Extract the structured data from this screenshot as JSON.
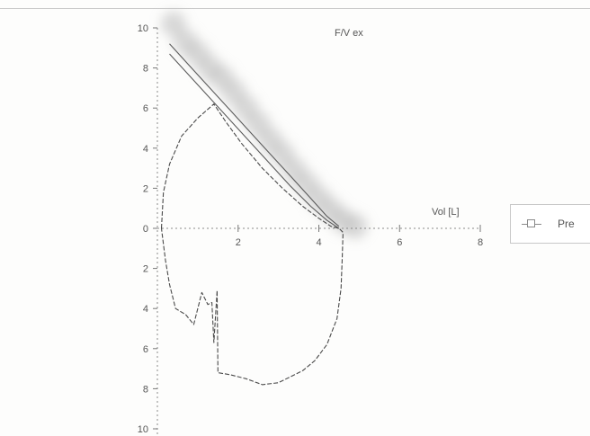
{
  "chart_data": {
    "type": "line",
    "title": "F/V ex",
    "xlabel": "Vol [L]",
    "ylabel": "",
    "xlim": [
      0,
      8
    ],
    "ylim": [
      -10,
      10
    ],
    "x_ticks": [
      {
        "value": 2,
        "label": "2"
      },
      {
        "value": 4,
        "label": "4"
      },
      {
        "value": 6,
        "label": "6"
      },
      {
        "value": 8,
        "label": "8"
      }
    ],
    "y_ticks": [
      {
        "value": 10,
        "label": "10"
      },
      {
        "value": 8,
        "label": "8"
      },
      {
        "value": 6,
        "label": "6"
      },
      {
        "value": 4,
        "label": "4"
      },
      {
        "value": 2,
        "label": "2"
      },
      {
        "value": 0,
        "label": "0"
      },
      {
        "value": -2,
        "label": "2"
      },
      {
        "value": -4,
        "label": "4"
      },
      {
        "value": -6,
        "label": "6"
      },
      {
        "value": -8,
        "label": "8"
      },
      {
        "value": -10,
        "label": "10"
      }
    ],
    "grid": false,
    "legend": {
      "placement": "right",
      "entries": [
        "Pre"
      ]
    },
    "series": [
      {
        "name": "Pre",
        "style": "measured-loop",
        "color": "#4a4a4a",
        "x": [
          0.1,
          0.15,
          0.3,
          0.6,
          1.0,
          1.4,
          1.7,
          2.1,
          2.6,
          3.1,
          3.6,
          4.0,
          4.3,
          4.5,
          4.6,
          4.58,
          4.55,
          4.45,
          4.2,
          3.9,
          3.6,
          3.3,
          3.0,
          2.6,
          2.2,
          1.8,
          1.5,
          1.48,
          1.4,
          1.35,
          1.25,
          1.1,
          0.9,
          0.7,
          0.45,
          0.3,
          0.2,
          0.1
        ],
        "y": [
          0.0,
          1.8,
          3.2,
          4.6,
          5.5,
          6.2,
          5.3,
          4.2,
          3.0,
          2.0,
          1.1,
          0.5,
          0.1,
          0.0,
          -0.2,
          -1.5,
          -3.0,
          -4.5,
          -5.8,
          -6.6,
          -7.1,
          -7.4,
          -7.7,
          -7.8,
          -7.5,
          -7.3,
          -7.2,
          -3.1,
          -5.7,
          -3.7,
          -3.8,
          -3.2,
          -4.8,
          -4.3,
          -4.0,
          -2.8,
          -1.6,
          0.0
        ]
      },
      {
        "name": "",
        "style": "predicted-upper",
        "color": "#5c5c5c",
        "x": [
          0.3,
          0.8,
          1.3,
          1.8,
          2.3,
          2.8,
          3.3,
          3.8,
          4.2,
          4.5
        ],
        "y": [
          9.2,
          8.1,
          7.0,
          5.9,
          4.8,
          3.7,
          2.6,
          1.5,
          0.6,
          0.1
        ]
      },
      {
        "name": "",
        "style": "predicted-lower",
        "color": "#5c5c5c",
        "x": [
          0.3,
          0.8,
          1.3,
          1.8,
          2.3,
          2.8,
          3.3,
          3.8,
          4.2,
          4.5
        ],
        "y": [
          8.7,
          7.6,
          6.5,
          5.4,
          4.3,
          3.2,
          2.1,
          1.1,
          0.4,
          0.0
        ]
      },
      {
        "name": "",
        "style": "predicted-band",
        "color": "#b9b9b9",
        "x": [
          0.4,
          0.7,
          1.0,
          1.3,
          1.6,
          1.9,
          2.2,
          2.5,
          2.8,
          3.1,
          3.4,
          3.7,
          4.0,
          4.3,
          4.6,
          4.9
        ],
        "y": [
          10.2,
          9.3,
          8.7,
          8.0,
          7.5,
          6.8,
          6.0,
          5.2,
          4.4,
          3.7,
          2.9,
          2.2,
          1.5,
          0.9,
          0.4,
          0.1
        ]
      }
    ]
  }
}
